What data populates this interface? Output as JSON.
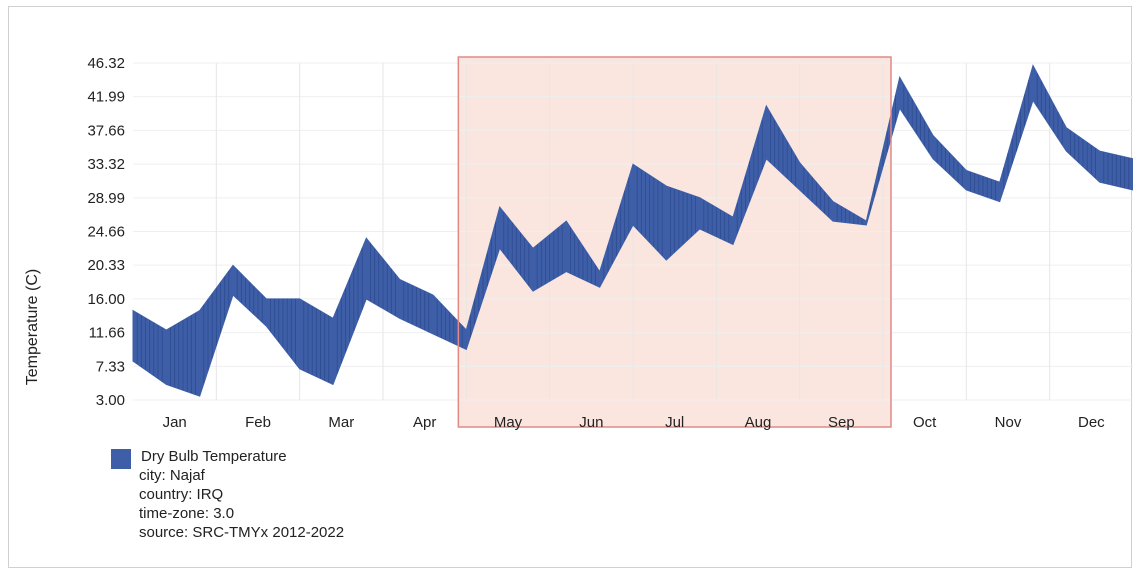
{
  "chart_data": {
    "type": "area",
    "title": "",
    "ylabel": "Temperature (C)",
    "xlabel": "",
    "ylim": [
      3.0,
      46.32
    ],
    "yticks": [
      "46.32",
      "41.99",
      "37.66",
      "33.32",
      "28.99",
      "24.66",
      "20.33",
      "16.00",
      "11.66",
      "7.33",
      "3.00"
    ],
    "categories": [
      "Jan",
      "Feb",
      "Mar",
      "Apr",
      "May",
      "Jun",
      "Jul",
      "Aug",
      "Sep",
      "Oct",
      "Nov",
      "Dec"
    ],
    "highlight": {
      "from_month": "May",
      "to_month": "Sep",
      "color": "#fbe6df",
      "border": "#e08a86"
    },
    "series": [
      {
        "name": "Dry Bulb Temperature",
        "color": "#3e5fa8",
        "x": [
          0.0,
          0.4,
          0.8,
          1.2,
          1.6,
          2.0,
          2.4,
          2.8,
          3.2,
          3.6,
          4.0,
          4.4,
          4.8,
          5.2,
          5.6,
          6.0,
          6.4,
          6.8,
          7.2,
          7.6,
          8.0,
          8.4,
          8.8,
          9.2,
          9.6,
          10.0,
          10.4,
          10.8,
          11.2,
          11.6,
          12.0
        ],
        "high": [
          14.5,
          12.0,
          14.5,
          20.3,
          16.0,
          16.0,
          13.5,
          23.8,
          18.5,
          16.5,
          12.0,
          27.8,
          22.5,
          26.0,
          19.5,
          33.3,
          30.5,
          29.0,
          26.5,
          40.8,
          33.5,
          28.5,
          26.0,
          44.5,
          37.0,
          32.5,
          31.0,
          46.0,
          38.0,
          35.0,
          34.0
        ],
        "low": [
          8.0,
          5.0,
          3.5,
          16.5,
          12.5,
          7.0,
          5.0,
          16.0,
          13.5,
          11.5,
          9.5,
          22.5,
          17.0,
          19.5,
          17.5,
          25.5,
          21.0,
          25.0,
          23.0,
          34.0,
          30.0,
          26.0,
          25.5,
          40.5,
          34.0,
          30.0,
          28.5,
          41.5,
          35.0,
          31.0,
          30.0
        ]
      }
    ],
    "grid": true
  },
  "legend": {
    "series_label": "Dry Bulb Temperature",
    "lines": [
      "city: Najaf",
      "country: IRQ",
      "time-zone: 3.0",
      "source: SRC-TMYx 2012-2022"
    ]
  }
}
